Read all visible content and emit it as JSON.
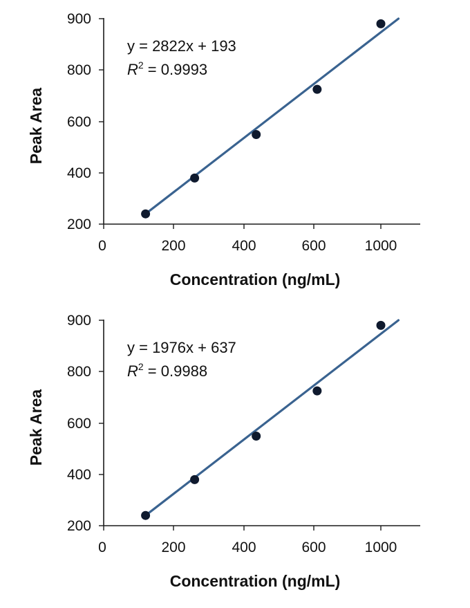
{
  "colors": {
    "fit_line": "#3a6390",
    "points": "#0f1a2e"
  },
  "chart_data": [
    {
      "type": "scatter",
      "title": "",
      "xlabel": "Concentration (ng/mL)",
      "ylabel": "Peak Area",
      "x_ticks": [
        "0",
        "200",
        "400",
        "600",
        "1000"
      ],
      "y_ticks": [
        "200",
        "400",
        "600",
        "800",
        "900"
      ],
      "equation": "y = 2822x + 193",
      "r2_symbol": "R",
      "r2_sup": "2",
      "r2_value": " = 0.9993",
      "points": [
        {
          "x": 120,
          "y": 240
        },
        {
          "x": 260,
          "y": 380
        },
        {
          "x": 435,
          "y": 550
        },
        {
          "x": 620,
          "y": 725
        },
        {
          "x": 1000,
          "y": 890
        }
      ],
      "fit_line": [
        {
          "x": 120,
          "y": 240
        },
        {
          "x": 1105,
          "y": 900
        }
      ],
      "grid": false,
      "legend": "none"
    },
    {
      "type": "scatter",
      "title": "",
      "xlabel": "Concentration (ng/mL)",
      "ylabel": "Peak Area",
      "x_ticks": [
        "0",
        "200",
        "400",
        "600",
        "1000"
      ],
      "y_ticks": [
        "200",
        "400",
        "600",
        "800",
        "900"
      ],
      "equation": "y = 1976x + 637",
      "r2_symbol": "R",
      "r2_sup": "2",
      "r2_value": " = 0.9988",
      "points": [
        {
          "x": 120,
          "y": 240
        },
        {
          "x": 260,
          "y": 380
        },
        {
          "x": 435,
          "y": 550
        },
        {
          "x": 620,
          "y": 725
        },
        {
          "x": 1000,
          "y": 890
        }
      ],
      "fit_line": [
        {
          "x": 120,
          "y": 240
        },
        {
          "x": 1105,
          "y": 900
        }
      ],
      "grid": false,
      "legend": "none"
    }
  ]
}
